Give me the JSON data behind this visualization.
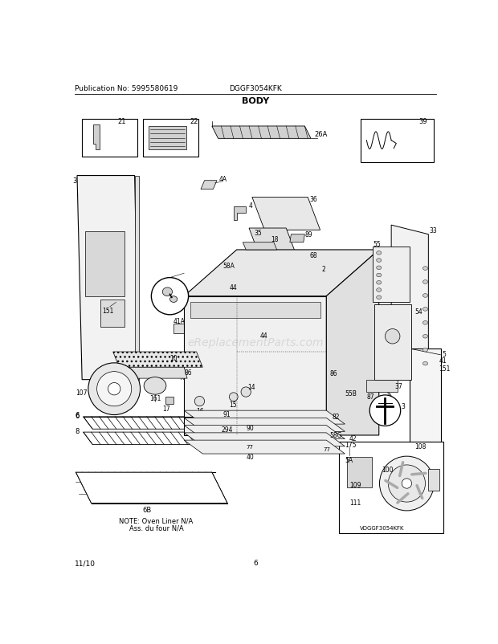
{
  "title": "BODY",
  "pub_no": "Publication No: 5995580619",
  "model": "DGGF3054KFK",
  "date": "11/10",
  "page": "6",
  "bottom_right_model": "VDGGF3054KFK",
  "note_line1": "NOTE: Oven Liner N/A",
  "note_line2": "Ass. du four N/A",
  "watermark": "eReplacementParts.com",
  "bg_color": "#ffffff",
  "line_color": "#000000",
  "fig_width": 6.2,
  "fig_height": 8.03,
  "dpi": 100
}
